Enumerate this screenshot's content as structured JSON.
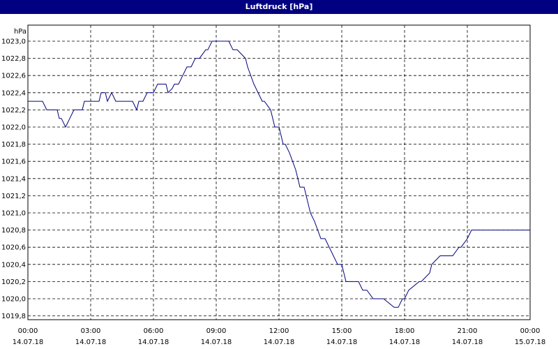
{
  "window": {
    "title": "Luftdruck [hPa]"
  },
  "chart_data": {
    "type": "line",
    "title": "Luftdruck [hPa]",
    "ylabel": "hPa",
    "xlabel": "",
    "ylim": [
      1019.9,
      1023.1
    ],
    "xlim": [
      0,
      24
    ],
    "grid": true,
    "line_color": "#000080",
    "grid_color": "#000000",
    "yticks": [
      "1023,0",
      "1022,8",
      "1022,6",
      "1022,4",
      "1022,2",
      "1022,0",
      "1021,8",
      "1021,6",
      "1021,4",
      "1021,2",
      "1021,0",
      "1020,8",
      "1020,6",
      "1020,4",
      "1020,2",
      "1020,0",
      "1019,8"
    ],
    "ytick_values": [
      1023.0,
      1022.8,
      1022.6,
      1022.4,
      1022.2,
      1022.0,
      1021.8,
      1021.6,
      1021.4,
      1021.2,
      1021.0,
      1020.8,
      1020.6,
      1020.4,
      1020.2,
      1020.0,
      1019.8
    ],
    "xticks": [
      {
        "hour": 0,
        "time": "00:00",
        "date": "14.07.18"
      },
      {
        "hour": 3,
        "time": "03:00",
        "date": "14.07.18"
      },
      {
        "hour": 6,
        "time": "06:00",
        "date": "14.07.18"
      },
      {
        "hour": 9,
        "time": "09:00",
        "date": "14.07.18"
      },
      {
        "hour": 12,
        "time": "12:00",
        "date": "14.07.18"
      },
      {
        "hour": 15,
        "time": "15:00",
        "date": "14.07.18"
      },
      {
        "hour": 18,
        "time": "18:00",
        "date": "14.07.18"
      },
      {
        "hour": 21,
        "time": "21:00",
        "date": "14.07.18"
      },
      {
        "hour": 24,
        "time": "00:00",
        "date": "15.07.18"
      }
    ],
    "series": [
      {
        "x": [
          0,
          0.7,
          0.9,
          1.4,
          1.5,
          1.6,
          1.8,
          1.9,
          2.0,
          2.1,
          2.2,
          2.3,
          2.6,
          2.7,
          3.0,
          3.4,
          3.5,
          3.7,
          3.8,
          4.0,
          4.2,
          5.0,
          5.2,
          5.3,
          5.5,
          5.7,
          6.0,
          6.2,
          6.6,
          6.7,
          6.9,
          7.0,
          7.2,
          7.4,
          7.6,
          7.8,
          8.0,
          8.2,
          8.5,
          8.6,
          8.8,
          9.0,
          9.3,
          9.6,
          9.8,
          10.0,
          10.4,
          10.5,
          10.8,
          11.2,
          11.3,
          11.6,
          11.8,
          12.0,
          12.1,
          12.2,
          12.3,
          12.5,
          12.8,
          13.0,
          13.2,
          13.5,
          13.7,
          14.0,
          14.2,
          14.4,
          14.6,
          14.8,
          15.0,
          15.1,
          15.2,
          15.4,
          15.6,
          15.8,
          16.0,
          16.2,
          16.5,
          16.7,
          16.9,
          17.0,
          17.5,
          17.7,
          17.9,
          18.0,
          18.2,
          18.7,
          18.8,
          19.2,
          19.3,
          19.7,
          19.8,
          20.2,
          20.3,
          20.6,
          20.7,
          21.0,
          21.2,
          22.3,
          22.4,
          22.8,
          22.9,
          23.2,
          23.3,
          24.0
        ],
        "y": [
          1022.3,
          1022.3,
          1022.2,
          1022.2,
          1022.1,
          1022.1,
          1022.0,
          1022.05,
          1022.1,
          1022.15,
          1022.2,
          1022.2,
          1022.2,
          1022.3,
          1022.3,
          1022.3,
          1022.4,
          1022.4,
          1022.3,
          1022.4,
          1022.3,
          1022.3,
          1022.2,
          1022.3,
          1022.3,
          1022.4,
          1022.4,
          1022.5,
          1022.5,
          1022.4,
          1022.45,
          1022.5,
          1022.5,
          1022.6,
          1022.7,
          1022.7,
          1022.8,
          1022.8,
          1022.9,
          1022.9,
          1023.0,
          1023.0,
          1023.0,
          1023.0,
          1022.9,
          1022.9,
          1022.8,
          1022.7,
          1022.5,
          1022.3,
          1022.3,
          1022.2,
          1022.0,
          1022.0,
          1021.9,
          1021.8,
          1021.8,
          1021.7,
          1021.5,
          1021.3,
          1021.3,
          1021.0,
          1020.9,
          1020.7,
          1020.7,
          1020.6,
          1020.5,
          1020.4,
          1020.4,
          1020.3,
          1020.2,
          1020.2,
          1020.2,
          1020.2,
          1020.1,
          1020.1,
          1020.0,
          1020.0,
          1020.0,
          1020.0,
          1019.9,
          1019.9,
          1020.0,
          1020.0,
          1020.1,
          1020.2,
          1020.2,
          1020.3,
          1020.4,
          1020.5,
          1020.5,
          1020.5,
          1020.5,
          1020.6,
          1020.6,
          1020.7,
          1020.8,
          1020.8,
          1020.8,
          1020.8,
          1020.8,
          1020.8,
          1020.8,
          1020.8
        ]
      }
    ]
  }
}
